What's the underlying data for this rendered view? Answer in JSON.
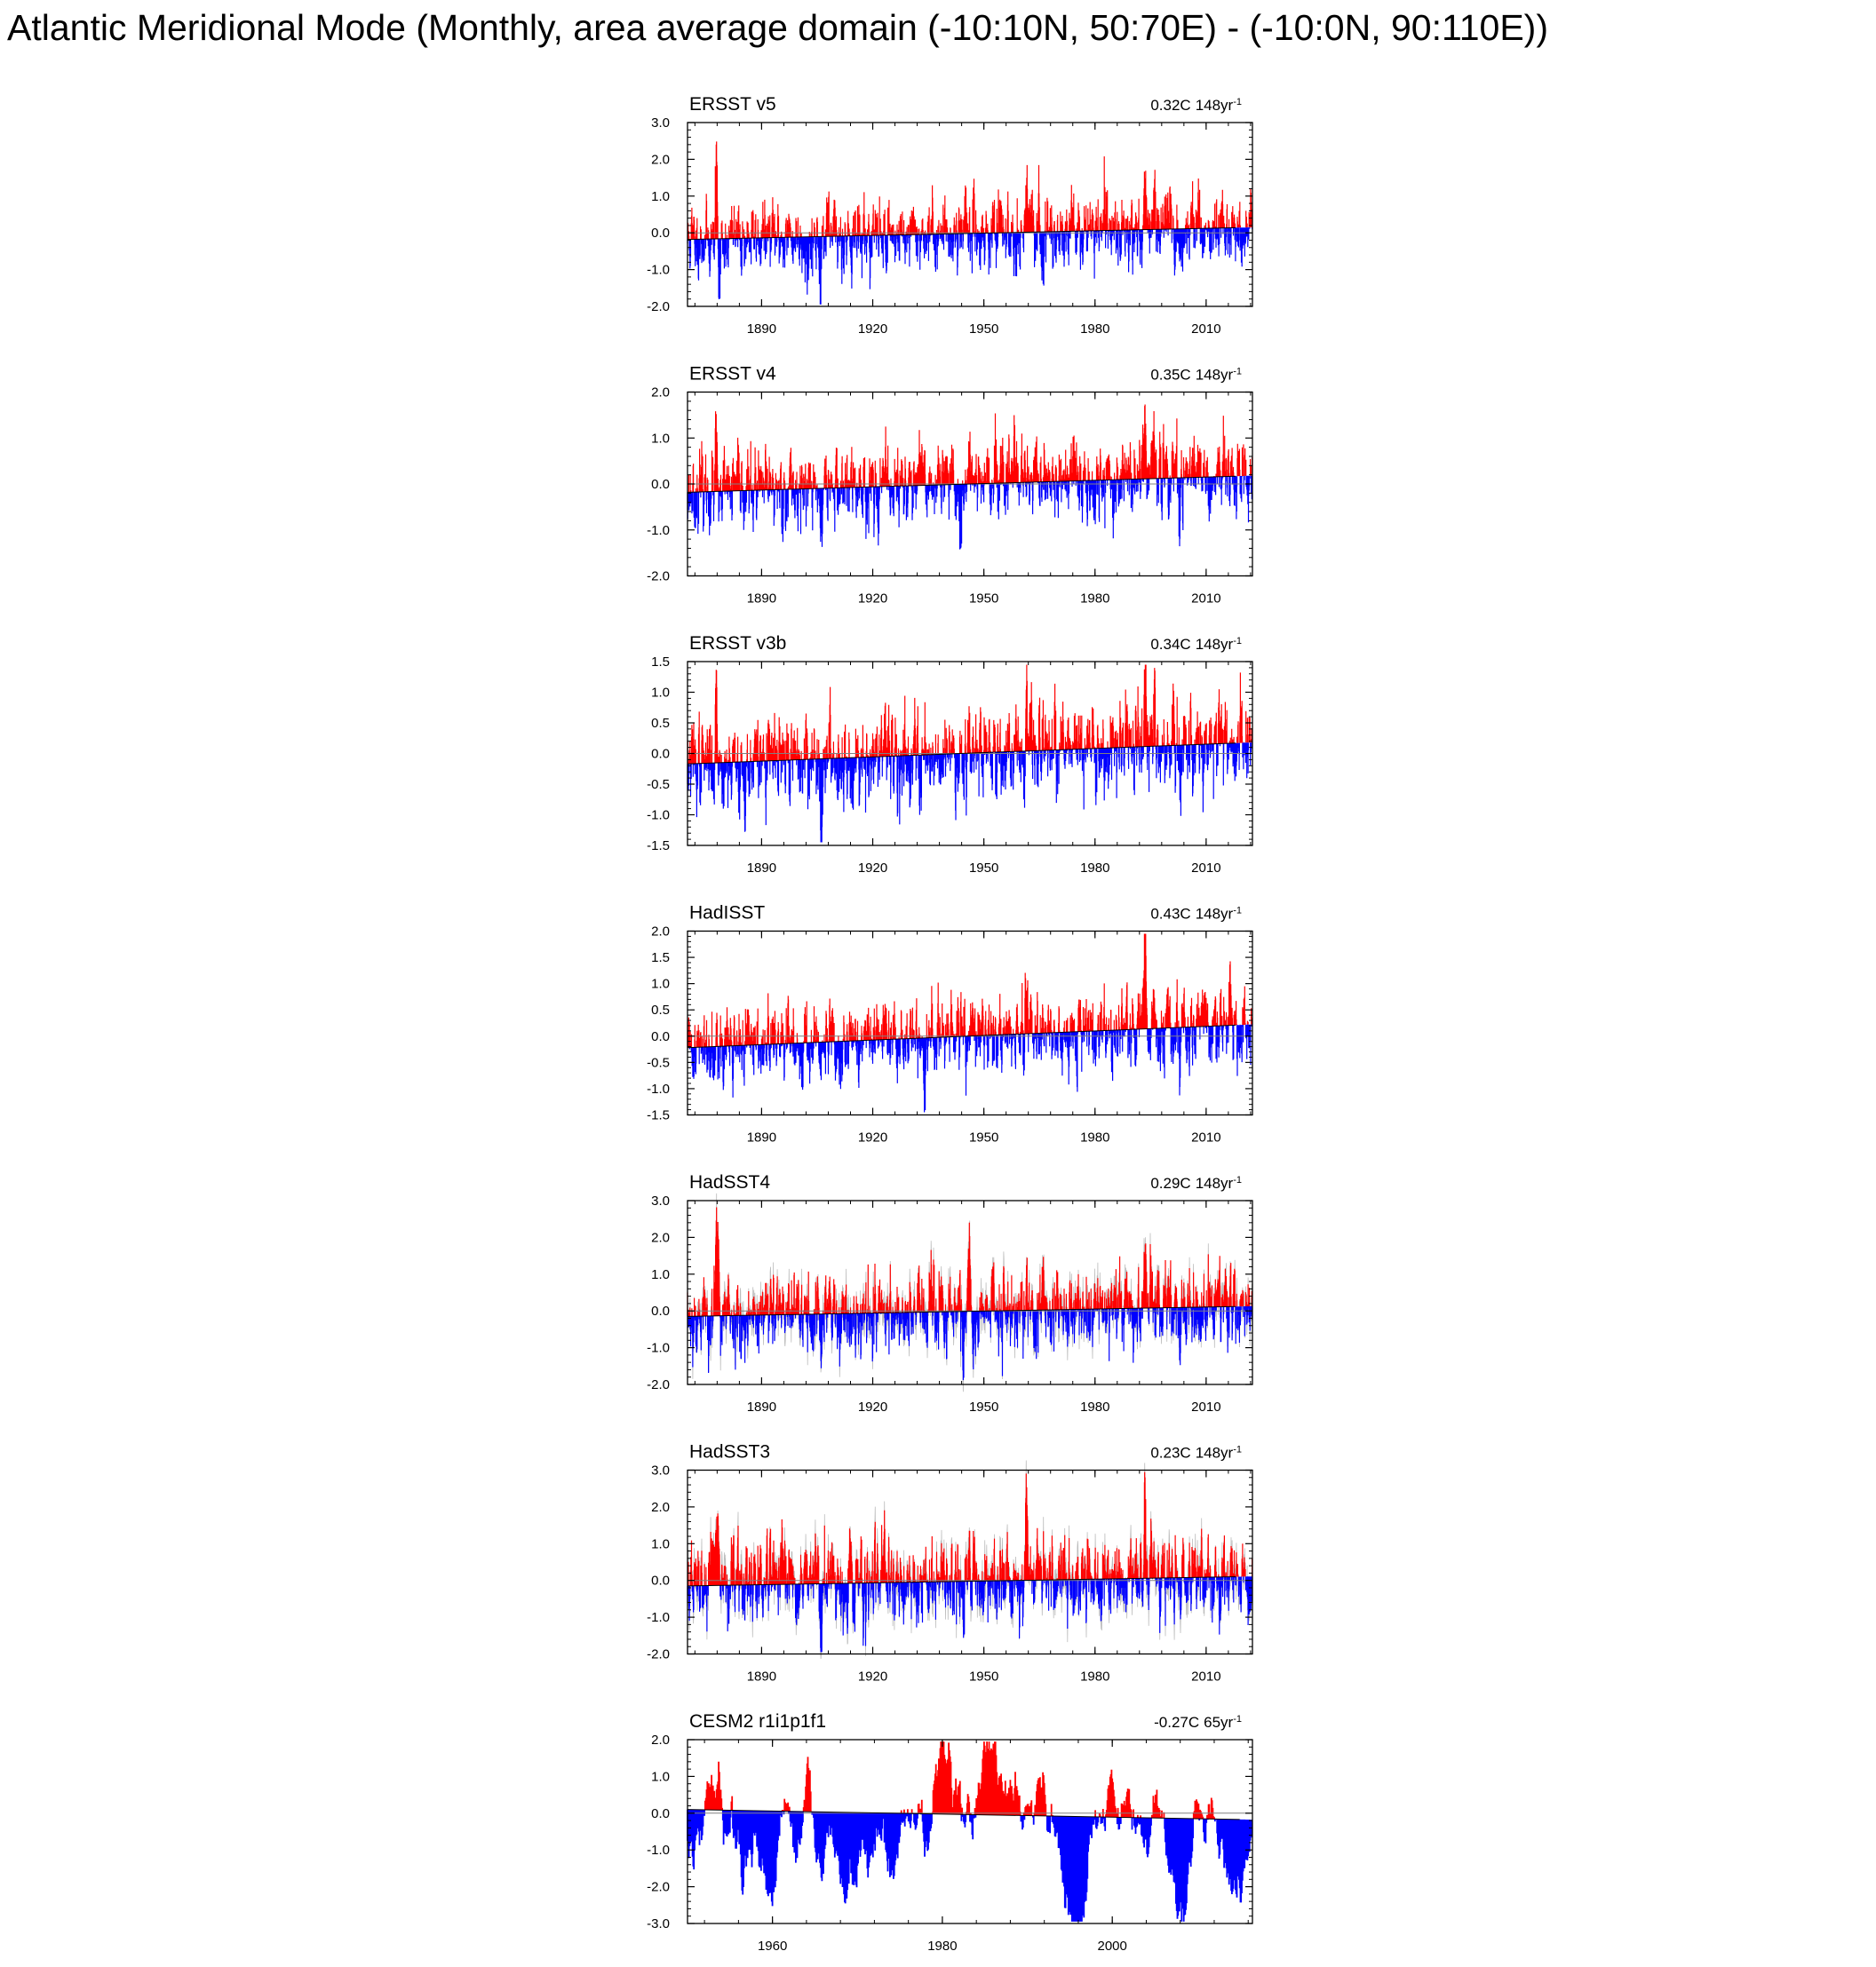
{
  "title": "Atlantic Meridional Mode (Monthly, area average domain (-10:10N, 50:70E) - (-10:0N, 90:110E))",
  "colors": {
    "positive": "#ff0000",
    "negative": "#0000ff",
    "fade": "#a0a0a0",
    "axis": "#000000",
    "zero_line": "#808080"
  },
  "chart_data": [
    {
      "type": "area",
      "title": "ERSST v5",
      "trend_value": "0.32C",
      "trend_period": "148yr",
      "trend_exp": "-1",
      "xlim": [
        1870,
        2022.5
      ],
      "ylim": [
        -2.0,
        3.0
      ],
      "xticks": [
        1890,
        1920,
        1950,
        1980,
        2010
      ],
      "xtick_labels": [
        "1890",
        "1920",
        "1950",
        "1980",
        "2010"
      ],
      "yticks": [
        -2,
        -1,
        0,
        1,
        2,
        3
      ],
      "ytick_labels": [
        "-2.0",
        "-1.0",
        "0.0",
        "1.0",
        "2.0",
        "3.0"
      ],
      "trend_line": {
        "x": [
          1870,
          2018
        ],
        "y": [
          -0.18,
          0.14
        ]
      },
      "spikes": [
        [
          1877.8,
          2.4
        ],
        [
          1878.6,
          -1.8
        ],
        [
          1902.5,
          -1.3
        ],
        [
          1906.0,
          -1.4
        ],
        [
          1945.0,
          1.3
        ],
        [
          1961.5,
          1.5
        ],
        [
          1966.0,
          -0.9
        ],
        [
          1993.5,
          1.6
        ],
        [
          1996.0,
          1.1
        ],
        [
          2003.0,
          -1.0
        ]
      ],
      "seed": 11,
      "amplitude": 0.48,
      "faded": false,
      "monthly": true
    },
    {
      "type": "area",
      "title": "ERSST v4",
      "trend_value": "0.35C",
      "trend_period": "148yr",
      "trend_exp": "-1",
      "xlim": [
        1870,
        2022.5
      ],
      "ylim": [
        -2.0,
        2.0
      ],
      "xticks": [
        1890,
        1920,
        1950,
        1980,
        2010
      ],
      "xtick_labels": [
        "1890",
        "1920",
        "1950",
        "1980",
        "2010"
      ],
      "yticks": [
        -2,
        -1,
        0,
        1,
        2
      ],
      "ytick_labels": [
        "-2.0",
        "-1.0",
        "0.0",
        "1.0",
        "2.0"
      ],
      "trend_line": {
        "x": [
          1870,
          2018
        ],
        "y": [
          -0.18,
          0.17
        ]
      },
      "spikes": [
        [
          1877.8,
          1.4
        ],
        [
          1878.6,
          -1.0
        ],
        [
          1906.0,
          -1.2
        ],
        [
          1943.8,
          -1.55
        ],
        [
          1946.0,
          1.3
        ],
        [
          1993.5,
          1.6
        ],
        [
          1996.0,
          1.1
        ],
        [
          2003.0,
          -0.9
        ]
      ],
      "seed": 23,
      "amplitude": 0.42,
      "faded": false,
      "monthly": true
    },
    {
      "type": "area",
      "title": "ERSST v3b",
      "trend_value": "0.34C",
      "trend_period": "148yr",
      "trend_exp": "-1",
      "xlim": [
        1870,
        2022.5
      ],
      "ylim": [
        -1.5,
        1.5
      ],
      "xticks": [
        1890,
        1920,
        1950,
        1980,
        2010
      ],
      "xtick_labels": [
        "1890",
        "1920",
        "1950",
        "1980",
        "2010"
      ],
      "yticks": [
        -1.5,
        -1,
        -0.5,
        0,
        0.5,
        1,
        1.5
      ],
      "ytick_labels": [
        "-1.5",
        "-1.0",
        "-0.5",
        "0.0",
        "0.5",
        "1.0",
        "1.5"
      ],
      "trend_line": {
        "x": [
          1870,
          2018
        ],
        "y": [
          -0.17,
          0.17
        ]
      },
      "spikes": [
        [
          1877.8,
          1.25
        ],
        [
          1885.5,
          -1.05
        ],
        [
          1906.0,
          -1.3
        ],
        [
          1946.0,
          1.1
        ],
        [
          1961.5,
          1.2
        ],
        [
          1993.5,
          1.4
        ],
        [
          1996.0,
          1.0
        ],
        [
          2003.0,
          -0.85
        ]
      ],
      "seed": 37,
      "amplitude": 0.36,
      "faded": false,
      "monthly": true
    },
    {
      "type": "area",
      "title": "HadISST",
      "trend_value": "0.43C",
      "trend_period": "148yr",
      "trend_exp": "-1",
      "xlim": [
        1870,
        2022.5
      ],
      "ylim": [
        -1.5,
        2.0
      ],
      "xticks": [
        1890,
        1920,
        1950,
        1980,
        2010
      ],
      "xtick_labels": [
        "1890",
        "1920",
        "1950",
        "1980",
        "2010"
      ],
      "yticks": [
        -1.5,
        -1,
        -0.5,
        0,
        0.5,
        1,
        1.5,
        2
      ],
      "ytick_labels": [
        "-1.5",
        "-1.0",
        "-0.5",
        "0.0",
        "0.5",
        "1.0",
        "1.5",
        "2.0"
      ],
      "trend_line": {
        "x": [
          1870,
          2018
        ],
        "y": [
          -0.22,
          0.21
        ]
      },
      "spikes": [
        [
          1877.8,
          0.9
        ],
        [
          1906.0,
          -1.2
        ],
        [
          1934.0,
          -1.15
        ],
        [
          1961.5,
          1.05
        ],
        [
          1993.5,
          1.6
        ],
        [
          1996.0,
          1.1
        ],
        [
          2003.0,
          -0.9
        ]
      ],
      "seed": 41,
      "amplitude": 0.36,
      "faded": false,
      "monthly": true
    },
    {
      "type": "area",
      "title": "HadSST4",
      "trend_value": "0.29C",
      "trend_period": "148yr",
      "trend_exp": "-1",
      "xlim": [
        1870,
        2022.5
      ],
      "ylim": [
        -2.0,
        3.0
      ],
      "xticks": [
        1890,
        1920,
        1950,
        1980,
        2010
      ],
      "xtick_labels": [
        "1890",
        "1920",
        "1950",
        "1980",
        "2010"
      ],
      "yticks": [
        -2,
        -1,
        0,
        1,
        2,
        3
      ],
      "ytick_labels": [
        "-2.0",
        "-1.0",
        "0.0",
        "1.0",
        "2.0",
        "3.0"
      ],
      "trend_line": {
        "x": [
          1870,
          2018
        ],
        "y": [
          -0.15,
          0.12
        ]
      },
      "spikes": [
        [
          1877.8,
          2.3
        ],
        [
          1878.4,
          1.7
        ],
        [
          1906.0,
          -1.4
        ],
        [
          1944.5,
          -1.3
        ],
        [
          1946.0,
          1.5
        ],
        [
          1961.5,
          1.8
        ],
        [
          1993.5,
          2.5
        ],
        [
          1995.0,
          1.1
        ],
        [
          2003.0,
          -1.2
        ]
      ],
      "seed": 53,
      "amplitude": 0.55,
      "faded": true,
      "monthly": true
    },
    {
      "type": "area",
      "title": "HadSST3",
      "trend_value": "0.23C",
      "trend_period": "148yr",
      "trend_exp": "-1",
      "xlim": [
        1870,
        2022.5
      ],
      "ylim": [
        -2.0,
        3.0
      ],
      "xticks": [
        1890,
        1920,
        1950,
        1980,
        2010
      ],
      "xtick_labels": [
        "1890",
        "1920",
        "1950",
        "1980",
        "2010"
      ],
      "yticks": [
        -2,
        -1,
        0,
        1,
        2,
        3
      ],
      "ytick_labels": [
        "-2.0",
        "-1.0",
        "0.0",
        "1.0",
        "2.0",
        "3.0"
      ],
      "trend_line": {
        "x": [
          1870,
          2018
        ],
        "y": [
          -0.15,
          0.1
        ]
      },
      "spikes": [
        [
          1877.8,
          2.3
        ],
        [
          1878.4,
          1.6
        ],
        [
          1906.0,
          -1.45
        ],
        [
          1944.5,
          -1.2
        ],
        [
          1946.0,
          1.4
        ],
        [
          1961.5,
          1.8
        ],
        [
          1993.5,
          2.5
        ],
        [
          1995.0,
          1.1
        ],
        [
          2003.0,
          -1.3
        ]
      ],
      "seed": 67,
      "amplitude": 0.55,
      "faded": true,
      "monthly": true
    },
    {
      "type": "area",
      "title": "CESM2 r1i1p1f1",
      "trend_value": "-0.27C",
      "trend_period": "65yr",
      "trend_exp": "-1",
      "xlim": [
        1950,
        2016.5
      ],
      "ylim": [
        -3.0,
        2.0
      ],
      "xticks": [
        1960,
        1980,
        2000
      ],
      "xtick_labels": [
        "1960",
        "1980",
        "2000"
      ],
      "yticks": [
        -3,
        -2,
        -1,
        0,
        1,
        2
      ],
      "ytick_labels": [
        "-3.0",
        "-2.0",
        "-1.0",
        "0.0",
        "1.0",
        "2.0"
      ],
      "trend_line": {
        "x": [
          1950,
          2015
        ],
        "y": [
          0.1,
          -0.17
        ]
      },
      "spikes": [
        [
          1951.1,
          -1.6
        ],
        [
          1959.8,
          -2.05
        ],
        [
          1966.5,
          -1.95
        ],
        [
          1968.8,
          -1.9
        ],
        [
          1974.5,
          -1.8
        ],
        [
          1979.8,
          1.95
        ],
        [
          1985.5,
          1.7
        ],
        [
          1995.6,
          -2.2
        ],
        [
          1996.3,
          -2.1
        ],
        [
          2008.5,
          -2.7
        ],
        [
          2015.0,
          -2.5
        ]
      ],
      "seed": 79,
      "amplitude": 0.75,
      "faded": false,
      "monthly": false
    }
  ]
}
